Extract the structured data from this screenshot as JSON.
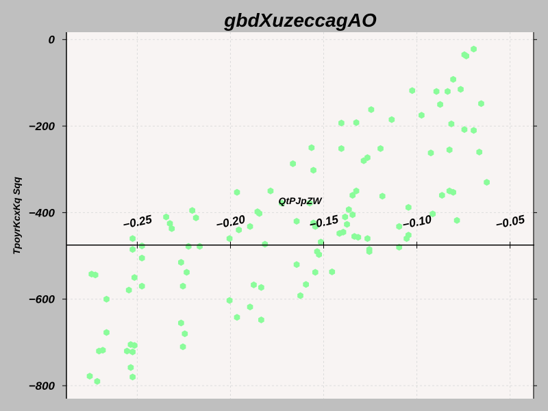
{
  "chart_data": {
    "type": "scatter",
    "title": "gbdXuzeccagAO",
    "xlabel": "QtPJpZW",
    "ylabel": "TpoyrKcxKq Sqq",
    "xlim": [
      -0.288,
      -0.037
    ],
    "ylim": [
      -830,
      17
    ],
    "x_ticks": [
      -0.25,
      -0.2,
      -0.15,
      -0.1,
      -0.05
    ],
    "x_tick_labels": [
      "−0.25",
      "−0.20",
      "−0.15",
      "−0.10",
      "−0.05"
    ],
    "y_ticks": [
      0,
      -200,
      -400,
      -600,
      -800
    ],
    "y_tick_labels": [
      "0",
      "−200",
      "−400",
      "−600",
      "−800"
    ],
    "x_axis_position": -475,
    "grid": true,
    "colors": {
      "points": "#8afc9a",
      "background": "#f8f4f3",
      "page": "#bfbfbf",
      "grid": "#dcdcdc"
    },
    "points": [
      {
        "x": -0.2745,
        "y": -542
      },
      {
        "x": -0.2725,
        "y": -544
      },
      {
        "x": -0.2665,
        "y": -600
      },
      {
        "x": -0.2755,
        "y": -778
      },
      {
        "x": -0.2715,
        "y": -790
      },
      {
        "x": -0.2705,
        "y": -720
      },
      {
        "x": -0.2685,
        "y": -718
      },
      {
        "x": -0.2665,
        "y": -677
      },
      {
        "x": -0.2555,
        "y": -720
      },
      {
        "x": -0.2535,
        "y": -705
      },
      {
        "x": -0.2515,
        "y": -707
      },
      {
        "x": -0.2525,
        "y": -722
      },
      {
        "x": -0.2535,
        "y": -758
      },
      {
        "x": -0.2525,
        "y": -780
      },
      {
        "x": -0.2545,
        "y": -579
      },
      {
        "x": -0.2515,
        "y": -550
      },
      {
        "x": -0.2475,
        "y": -570
      },
      {
        "x": -0.2525,
        "y": -460
      },
      {
        "x": -0.2525,
        "y": -485
      },
      {
        "x": -0.2475,
        "y": -477
      },
      {
        "x": -0.2475,
        "y": -505
      },
      {
        "x": -0.2345,
        "y": -410
      },
      {
        "x": -0.2325,
        "y": -425
      },
      {
        "x": -0.2315,
        "y": -437
      },
      {
        "x": -0.2265,
        "y": -515
      },
      {
        "x": -0.2235,
        "y": -538
      },
      {
        "x": -0.2255,
        "y": -570
      },
      {
        "x": -0.2205,
        "y": -395
      },
      {
        "x": -0.2185,
        "y": -412
      },
      {
        "x": -0.2225,
        "y": -478
      },
      {
        "x": -0.2165,
        "y": -478
      },
      {
        "x": -0.2265,
        "y": -655
      },
      {
        "x": -0.2245,
        "y": -680
      },
      {
        "x": -0.2255,
        "y": -710
      },
      {
        "x": -0.2005,
        "y": -460
      },
      {
        "x": -0.1955,
        "y": -440
      },
      {
        "x": -0.1965,
        "y": -353
      },
      {
        "x": -0.1895,
        "y": -432
      },
      {
        "x": -0.1855,
        "y": -398
      },
      {
        "x": -0.1845,
        "y": -402
      },
      {
        "x": -0.1815,
        "y": -473
      },
      {
        "x": -0.1785,
        "y": -350
      },
      {
        "x": -0.1875,
        "y": -567
      },
      {
        "x": -0.1835,
        "y": -573
      },
      {
        "x": -0.2005,
        "y": -603
      },
      {
        "x": -0.1965,
        "y": -642
      },
      {
        "x": -0.1895,
        "y": -618
      },
      {
        "x": -0.1835,
        "y": -648
      },
      {
        "x": -0.1725,
        "y": -378
      },
      {
        "x": -0.1665,
        "y": -287
      },
      {
        "x": -0.1645,
        "y": -420
      },
      {
        "x": -0.1645,
        "y": -520
      },
      {
        "x": -0.1575,
        "y": -378
      },
      {
        "x": -0.1555,
        "y": -424
      },
      {
        "x": -0.1545,
        "y": -432
      },
      {
        "x": -0.1565,
        "y": -250
      },
      {
        "x": -0.1555,
        "y": -302
      },
      {
        "x": -0.1595,
        "y": -566
      },
      {
        "x": -0.1545,
        "y": -538
      },
      {
        "x": -0.1535,
        "y": -490
      },
      {
        "x": -0.1525,
        "y": -497
      },
      {
        "x": -0.1515,
        "y": -468
      },
      {
        "x": -0.1625,
        "y": -592
      },
      {
        "x": -0.1455,
        "y": -537
      },
      {
        "x": -0.1415,
        "y": -448
      },
      {
        "x": -0.1395,
        "y": -445
      },
      {
        "x": -0.1385,
        "y": -410
      },
      {
        "x": -0.1375,
        "y": -427
      },
      {
        "x": -0.1365,
        "y": -393
      },
      {
        "x": -0.1345,
        "y": -405
      },
      {
        "x": -0.1345,
        "y": -360
      },
      {
        "x": -0.1325,
        "y": -350
      },
      {
        "x": -0.1335,
        "y": -455
      },
      {
        "x": -0.1315,
        "y": -457
      },
      {
        "x": -0.1405,
        "y": -193
      },
      {
        "x": -0.1325,
        "y": -192
      },
      {
        "x": -0.1405,
        "y": -252
      },
      {
        "x": -0.1285,
        "y": -280
      },
      {
        "x": -0.1265,
        "y": -273
      },
      {
        "x": -0.1265,
        "y": -460
      },
      {
        "x": -0.1255,
        "y": -485
      },
      {
        "x": -0.1255,
        "y": -490
      },
      {
        "x": -0.1245,
        "y": -162
      },
      {
        "x": -0.1195,
        "y": -252
      },
      {
        "x": -0.1185,
        "y": -362
      },
      {
        "x": -0.1135,
        "y": -185
      },
      {
        "x": -0.1095,
        "y": -432
      },
      {
        "x": -0.1095,
        "y": -480
      },
      {
        "x": -0.1055,
        "y": -460
      },
      {
        "x": -0.1045,
        "y": -452
      },
      {
        "x": -0.1045,
        "y": -388
      },
      {
        "x": -0.1025,
        "y": -118
      },
      {
        "x": -0.0975,
        "y": -175
      },
      {
        "x": -0.0925,
        "y": -262
      },
      {
        "x": -0.0915,
        "y": -403
      },
      {
        "x": -0.0895,
        "y": -120
      },
      {
        "x": -0.0875,
        "y": -150
      },
      {
        "x": -0.0865,
        "y": -360
      },
      {
        "x": -0.0835,
        "y": -120
      },
      {
        "x": -0.0825,
        "y": -350
      },
      {
        "x": -0.0805,
        "y": -353
      },
      {
        "x": -0.0825,
        "y": -255
      },
      {
        "x": -0.0815,
        "y": -195
      },
      {
        "x": -0.0785,
        "y": -418
      },
      {
        "x": -0.0805,
        "y": -92
      },
      {
        "x": -0.0765,
        "y": -115
      },
      {
        "x": -0.0745,
        "y": -35
      },
      {
        "x": -0.0735,
        "y": -38
      },
      {
        "x": -0.0695,
        "y": -22
      },
      {
        "x": -0.0745,
        "y": -208
      },
      {
        "x": -0.0695,
        "y": -210
      },
      {
        "x": -0.0665,
        "y": -260
      },
      {
        "x": -0.0655,
        "y": -148
      },
      {
        "x": -0.0625,
        "y": -330
      }
    ]
  }
}
